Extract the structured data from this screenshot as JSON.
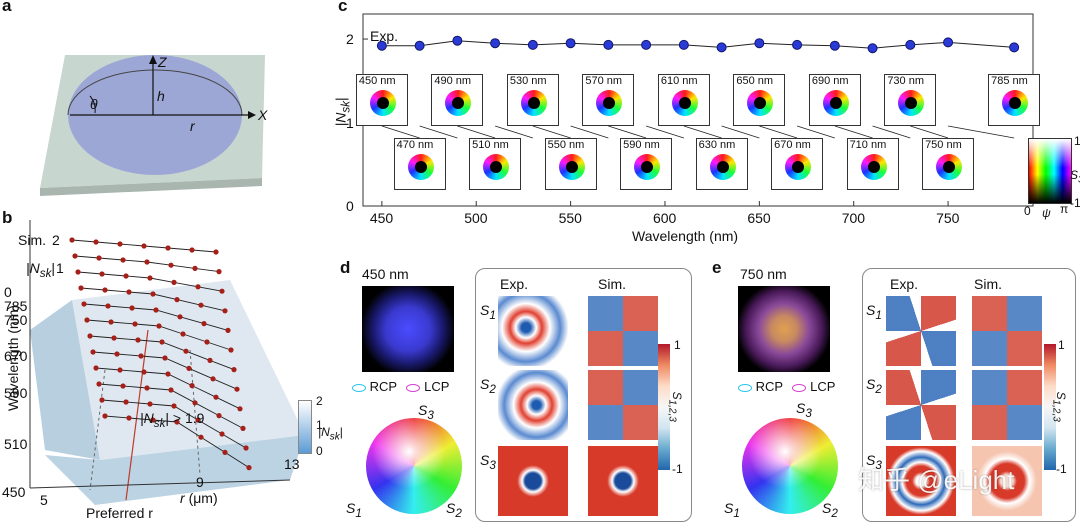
{
  "panels": {
    "a": {
      "letter": "a",
      "z": "Z",
      "x": "X",
      "theta": "θ",
      "h": "h",
      "r": "r"
    },
    "b": {
      "letter": "b",
      "sim": "Sim.",
      "nsk_axis": "|N",
      "nsk_sub": "sk",
      "nsk_close": "|",
      "nsk_ticks": [
        "2",
        "1",
        "0"
      ],
      "wl_ticks": [
        "785",
        "750",
        "670",
        "590",
        "510",
        "450"
      ],
      "ylabel": "Wavelength (nm)",
      "r_ticks": [
        "5",
        "9",
        "13"
      ],
      "xlabel_r": "r",
      "xlabel_unit": "(μm)",
      "annotation": "|N",
      "annotation_sub": "sk",
      "annotation_tail": "| > 1.9",
      "preferred": "Preferred r",
      "cbar_ticks": [
        "2",
        "1",
        "0"
      ],
      "cbar_label": "|N",
      "cbar_sub": "sk",
      "cbar_close": "|"
    },
    "c": {
      "letter": "c",
      "exp": "Exp.",
      "ylabel": "|N",
      "ylabel_sub": "sk",
      "ylabel_close": "|",
      "xlabel": "Wavelength (nm)",
      "x_ticks": [
        "450",
        "500",
        "550",
        "600",
        "650",
        "700",
        "750"
      ],
      "y_ticks": [
        "2",
        "1",
        "0"
      ],
      "top_row": [
        "450 nm",
        "490 nm",
        "530 nm",
        "570 nm",
        "610 nm",
        "650 nm",
        "690 nm",
        "730 nm",
        "785 nm"
      ],
      "bottom_row": [
        "470 nm",
        "510 nm",
        "550 nm",
        "590 nm",
        "630 nm",
        "670 nm",
        "710 nm",
        "750 nm"
      ],
      "cbar_top": "1",
      "cbar_bottom": "-1",
      "cbar_label": "S",
      "cbar_sub": "3",
      "cbar_x0": "0",
      "cbar_xpi": "π",
      "cbar_psi": "ψ"
    },
    "d": {
      "letter": "d",
      "wavelength": "450 nm",
      "rcp": "RCP",
      "lcp": "LCP",
      "exp": "Exp.",
      "sim": "Sim.",
      "s_labels": [
        "S",
        "S",
        "S"
      ],
      "s_subs": [
        "1",
        "2",
        "3"
      ],
      "cbar_top": "1",
      "cbar_bottom": "-1",
      "cbar_label": "S",
      "cbar_sub": "1,2,3",
      "sphere_s3": "S",
      "sphere_s1": "S",
      "sphere_s2": "S"
    },
    "e": {
      "letter": "e",
      "wavelength": "750 nm",
      "rcp": "RCP",
      "lcp": "LCP",
      "exp": "Exp.",
      "sim": "Sim.",
      "s_labels": [
        "S",
        "S",
        "S"
      ],
      "s_subs": [
        "1",
        "2",
        "3"
      ],
      "cbar_top": "1",
      "cbar_bottom": "-1",
      "cbar_label": "S",
      "cbar_sub": "1,2,3",
      "sphere_s3": "S",
      "sphere_s1": "S",
      "sphere_s2": "S"
    }
  },
  "watermark": "知乎 @eLight",
  "chart_data": {
    "type": "scatter",
    "xlabel": "Wavelength (nm)",
    "ylabel": "|Nsk|",
    "xlim": [
      440,
      795
    ],
    "ylim": [
      0,
      2.3
    ],
    "series": [
      {
        "name": "Exp.",
        "x": [
          450,
          470,
          490,
          510,
          530,
          550,
          570,
          590,
          610,
          630,
          650,
          670,
          690,
          710,
          730,
          750,
          785
        ],
        "y": [
          1.92,
          1.92,
          1.98,
          1.95,
          1.93,
          1.95,
          1.93,
          1.93,
          1.93,
          1.9,
          1.95,
          1.93,
          1.92,
          1.89,
          1.93,
          1.96,
          1.9
        ]
      }
    ]
  }
}
